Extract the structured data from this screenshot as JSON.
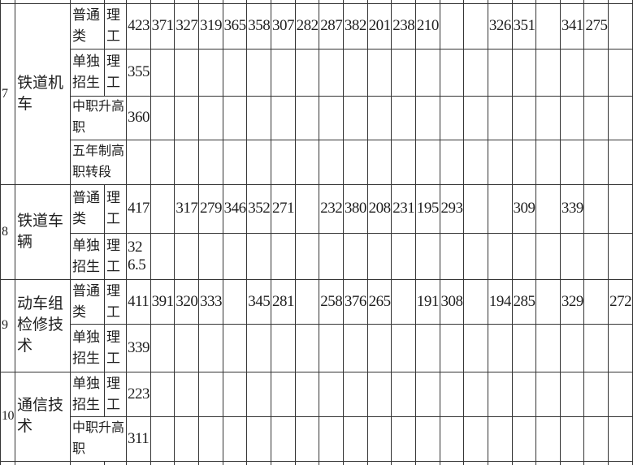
{
  "page": {
    "background_color": "#ffffff",
    "border_color": "#343434",
    "text_color": "#1f1f1f"
  },
  "table": {
    "score_column_count": 21,
    "rows": [
      {
        "no": "7",
        "major": "铁道机车",
        "subrows": [
          {
            "type": "普通类",
            "subject": "理工",
            "scores": [
              "423",
              "371",
              "327",
              "319",
              "365",
              "358",
              "307",
              "282",
              "287",
              "382",
              "201",
              "238",
              "210",
              "",
              "",
              "326",
              "351",
              "",
              "341",
              "275",
              ""
            ]
          },
          {
            "type": "单独招生",
            "subject": "理工",
            "scores": [
              "355",
              "",
              "",
              "",
              "",
              "",
              "",
              "",
              "",
              "",
              "",
              "",
              "",
              "",
              "",
              "",
              "",
              "",
              "",
              "",
              ""
            ]
          },
          {
            "type": "中职升高职",
            "subject": null,
            "scores": [
              "360",
              "",
              "",
              "",
              "",
              "",
              "",
              "",
              "",
              "",
              "",
              "",
              "",
              "",
              "",
              "",
              "",
              "",
              "",
              "",
              ""
            ]
          },
          {
            "type": "五年制高职转段",
            "subject": null,
            "scores": [
              "",
              "",
              "",
              "",
              "",
              "",
              "",
              "",
              "",
              "",
              "",
              "",
              "",
              "",
              "",
              "",
              "",
              "",
              "",
              "",
              ""
            ]
          }
        ]
      },
      {
        "no": "8",
        "major": "铁道车辆",
        "subrows": [
          {
            "type": "普通类",
            "subject": "理工",
            "scores": [
              "417",
              "",
              "317",
              "279",
              "346",
              "352",
              "271",
              "",
              "232",
              "380",
              "208",
              "231",
              "195",
              "293",
              "",
              "",
              "309",
              "",
              "339",
              "",
              ""
            ]
          },
          {
            "type": "单独招生",
            "subject": "理工",
            "scores": [
              "326.5",
              "",
              "",
              "",
              "",
              "",
              "",
              "",
              "",
              "",
              "",
              "",
              "",
              "",
              "",
              "",
              "",
              "",
              "",
              "",
              ""
            ]
          }
        ]
      },
      {
        "no": "9",
        "major": "动车组检修技术",
        "subrows": [
          {
            "type": "普通类",
            "subject": "理工",
            "scores": [
              "411",
              "391",
              "320",
              "333",
              "",
              "345",
              "281",
              "",
              "258",
              "376",
              "265",
              "",
              "191",
              "308",
              "",
              "194",
              "285",
              "",
              "329",
              "",
              "272"
            ]
          },
          {
            "type": "单独招生",
            "subject": "理工",
            "scores": [
              "339",
              "",
              "",
              "",
              "",
              "",
              "",
              "",
              "",
              "",
              "",
              "",
              "",
              "",
              "",
              "",
              "",
              "",
              "",
              "",
              ""
            ]
          }
        ]
      },
      {
        "no": "10",
        "major": "通信技术",
        "subrows": [
          {
            "type": "单独招生",
            "subject": "理工",
            "scores": [
              "223",
              "",
              "",
              "",
              "",
              "",
              "",
              "",
              "",
              "",
              "",
              "",
              "",
              "",
              "",
              "",
              "",
              "",
              "",
              "",
              ""
            ]
          },
          {
            "type": "中职升高职",
            "subject": null,
            "scores": [
              "311",
              "",
              "",
              "",
              "",
              "",
              "",
              "",
              "",
              "",
              "",
              "",
              "",
              "",
              "",
              "",
              "",
              "",
              "",
              "",
              ""
            ]
          }
        ]
      }
    ]
  }
}
